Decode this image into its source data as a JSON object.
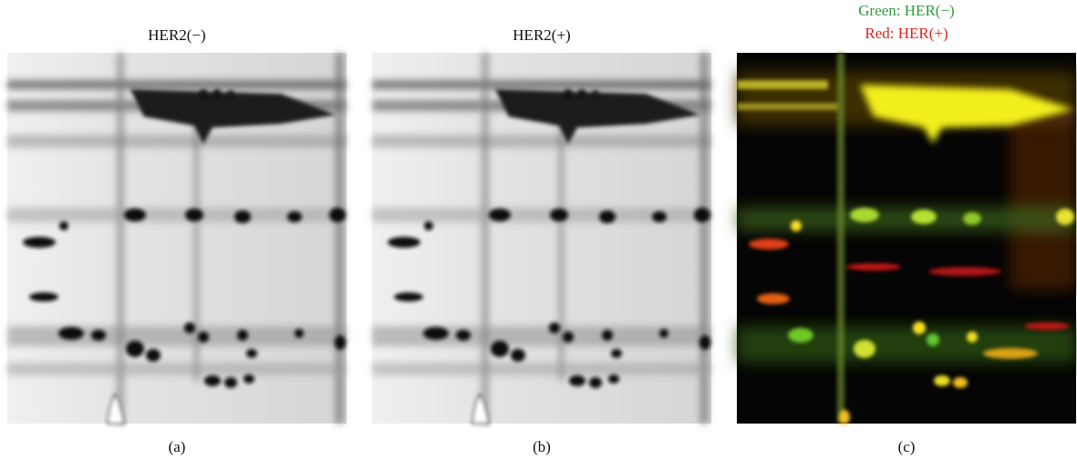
{
  "panels": [
    {
      "title": "HER2(−)",
      "label": "(a)"
    },
    {
      "title": "HER2(+)",
      "label": "(b)"
    },
    {
      "legend": [
        "Green: HER(−)",
        "Red: HER(+)"
      ],
      "label": "(c)"
    }
  ]
}
